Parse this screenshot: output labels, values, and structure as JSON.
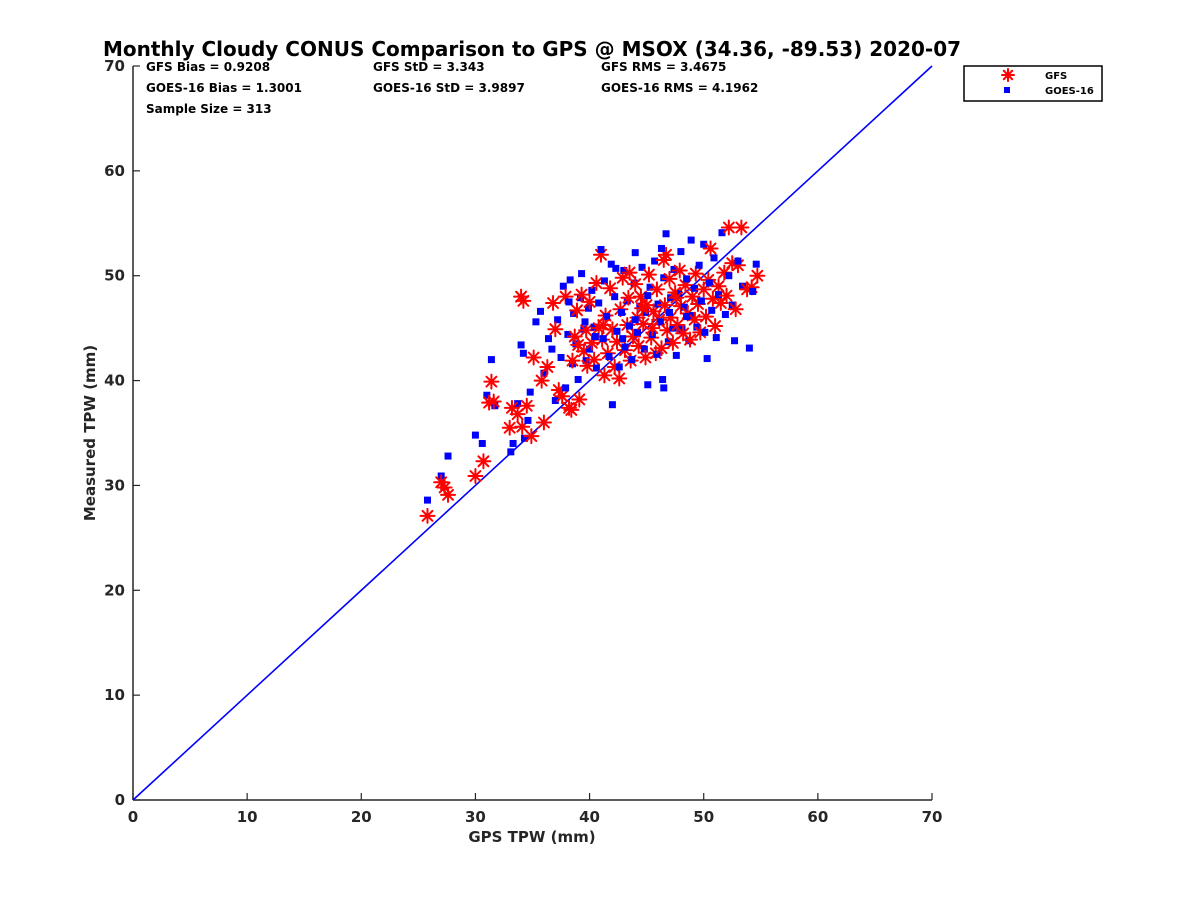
{
  "chart_data": {
    "type": "scatter",
    "title": "Monthly Cloudy CONUS Comparison to GPS @ MSOX (34.36, -89.53) 2020-07",
    "xlabel": "GPS TPW (mm)",
    "ylabel": "Measured TPW (mm)",
    "xlim": [
      0,
      70
    ],
    "ylim": [
      0,
      70
    ],
    "xticks": [
      "0",
      "10",
      "20",
      "30",
      "40",
      "50",
      "60",
      "70"
    ],
    "yticks": [
      "0",
      "10",
      "20",
      "30",
      "40",
      "50",
      "60",
      "70"
    ],
    "grid": false,
    "legend_position": "outside-top-right",
    "stats": [
      "GFS Bias = 0.9208",
      "GOES-16 Bias = 1.3001",
      "Sample Size = 313",
      "GFS StD = 3.343",
      "GOES-16 StD = 3.9897",
      "GFS RMS = 3.4675",
      "GOES-16 RMS = 4.1962"
    ],
    "reference_line": {
      "x": [
        0,
        70
      ],
      "y": [
        0,
        70
      ],
      "color": "#0000ff"
    },
    "series": [
      {
        "name": "GFS",
        "marker": "asterisk",
        "color": "#ff0000",
        "points": [
          [
            25.8,
            27.1
          ],
          [
            27.0,
            30.3
          ],
          [
            27.3,
            29.8
          ],
          [
            27.6,
            29.1
          ],
          [
            30.0,
            30.9
          ],
          [
            30.7,
            32.3
          ],
          [
            31.2,
            37.9
          ],
          [
            31.4,
            39.9
          ],
          [
            31.6,
            38.0
          ],
          [
            33.0,
            35.5
          ],
          [
            33.2,
            37.4
          ],
          [
            33.7,
            36.8
          ],
          [
            34.1,
            35.6
          ],
          [
            34.5,
            37.6
          ],
          [
            34.0,
            48.0
          ],
          [
            34.2,
            47.6
          ],
          [
            34.9,
            34.7
          ],
          [
            35.1,
            42.2
          ],
          [
            35.8,
            40.0
          ],
          [
            36.0,
            36.0
          ],
          [
            36.3,
            41.3
          ],
          [
            36.8,
            47.4
          ],
          [
            37.0,
            44.9
          ],
          [
            37.3,
            39.1
          ],
          [
            37.6,
            38.5
          ],
          [
            37.9,
            48.0
          ],
          [
            38.2,
            37.4
          ],
          [
            38.4,
            37.2
          ],
          [
            38.5,
            41.9
          ],
          [
            38.7,
            44.2
          ],
          [
            38.9,
            46.7
          ],
          [
            39.1,
            38.2
          ],
          [
            39.3,
            48.2
          ],
          [
            39.5,
            42.8
          ],
          [
            39.7,
            44.8
          ],
          [
            39.8,
            41.4
          ],
          [
            40.0,
            47.5
          ],
          [
            40.2,
            43.6
          ],
          [
            40.4,
            42.0
          ],
          [
            40.6,
            49.3
          ],
          [
            40.8,
            45.0
          ],
          [
            41.0,
            52.0
          ],
          [
            41.1,
            43.9
          ],
          [
            41.3,
            40.5
          ],
          [
            41.4,
            46.2
          ],
          [
            41.6,
            42.6
          ],
          [
            41.8,
            48.8
          ],
          [
            42.0,
            44.9
          ],
          [
            42.2,
            41.3
          ],
          [
            42.4,
            43.7
          ],
          [
            42.6,
            40.2
          ],
          [
            42.7,
            46.8
          ],
          [
            42.9,
            49.8
          ],
          [
            43.1,
            42.9
          ],
          [
            43.3,
            45.3
          ],
          [
            43.4,
            47.9
          ],
          [
            43.6,
            41.9
          ],
          [
            43.8,
            44.2
          ],
          [
            44.0,
            49.2
          ],
          [
            44.2,
            46.0
          ],
          [
            44.3,
            43.3
          ],
          [
            44.5,
            48.0
          ],
          [
            44.7,
            45.4
          ],
          [
            44.9,
            42.2
          ],
          [
            45.0,
            47.2
          ],
          [
            45.2,
            50.1
          ],
          [
            45.4,
            44.1
          ],
          [
            45.6,
            46.6
          ],
          [
            45.8,
            42.6
          ],
          [
            45.9,
            48.7
          ],
          [
            46.1,
            45.8
          ],
          [
            46.3,
            43.1
          ],
          [
            46.5,
            51.5
          ],
          [
            46.6,
            47.2
          ],
          [
            46.8,
            44.8
          ],
          [
            47.0,
            49.7
          ],
          [
            47.1,
            46.0
          ],
          [
            47.3,
            43.6
          ],
          [
            47.5,
            48.4
          ],
          [
            47.7,
            45.3
          ],
          [
            47.9,
            50.5
          ],
          [
            48.0,
            47.1
          ],
          [
            48.2,
            44.5
          ],
          [
            48.4,
            49.1
          ],
          [
            48.6,
            46.4
          ],
          [
            48.8,
            43.9
          ],
          [
            49.0,
            48.0
          ],
          [
            49.2,
            45.8
          ],
          [
            49.3,
            50.2
          ],
          [
            49.5,
            47.3
          ],
          [
            49.7,
            44.6
          ],
          [
            50.0,
            48.7
          ],
          [
            50.2,
            46.1
          ],
          [
            50.4,
            49.6
          ],
          [
            50.6,
            52.6
          ],
          [
            50.8,
            47.8
          ],
          [
            51.0,
            45.2
          ],
          [
            51.3,
            49.0
          ],
          [
            51.5,
            47.4
          ],
          [
            51.8,
            50.3
          ],
          [
            52.0,
            48.1
          ],
          [
            52.2,
            54.6
          ],
          [
            52.5,
            51.2
          ],
          [
            52.8,
            46.8
          ],
          [
            53.0,
            51.0
          ],
          [
            53.3,
            54.6
          ],
          [
            53.8,
            48.7
          ],
          [
            54.2,
            48.9
          ],
          [
            54.7,
            50.0
          ],
          [
            43.5,
            50.3
          ],
          [
            46.7,
            52.0
          ],
          [
            45.5,
            45.0
          ],
          [
            44.6,
            46.9
          ],
          [
            47.6,
            47.9
          ],
          [
            41.2,
            45.3
          ],
          [
            39.0,
            43.4
          ]
        ]
      },
      {
        "name": "GOES-16",
        "marker": "square",
        "color": "#0000ff",
        "points": [
          [
            25.8,
            28.6
          ],
          [
            27.0,
            30.9
          ],
          [
            27.6,
            32.8
          ],
          [
            30.0,
            34.8
          ],
          [
            30.6,
            34.0
          ],
          [
            31.0,
            38.6
          ],
          [
            31.4,
            42.0
          ],
          [
            31.7,
            37.6
          ],
          [
            33.1,
            33.2
          ],
          [
            33.3,
            34.0
          ],
          [
            33.7,
            37.8
          ],
          [
            34.0,
            43.4
          ],
          [
            34.2,
            42.6
          ],
          [
            34.3,
            34.5
          ],
          [
            34.6,
            36.2
          ],
          [
            34.8,
            38.9
          ],
          [
            35.3,
            45.6
          ],
          [
            35.7,
            46.6
          ],
          [
            36.0,
            40.7
          ],
          [
            36.4,
            44.0
          ],
          [
            36.7,
            43.0
          ],
          [
            37.0,
            38.1
          ],
          [
            37.2,
            45.8
          ],
          [
            37.5,
            42.2
          ],
          [
            37.7,
            49.0
          ],
          [
            37.9,
            39.3
          ],
          [
            38.1,
            44.4
          ],
          [
            38.3,
            49.6
          ],
          [
            38.5,
            41.6
          ],
          [
            38.6,
            46.4
          ],
          [
            38.8,
            43.5
          ],
          [
            39.0,
            40.1
          ],
          [
            39.2,
            47.9
          ],
          [
            39.3,
            50.2
          ],
          [
            39.5,
            44.9
          ],
          [
            39.7,
            41.9
          ],
          [
            39.9,
            46.9
          ],
          [
            40.0,
            43.0
          ],
          [
            40.2,
            48.6
          ],
          [
            40.4,
            45.1
          ],
          [
            40.6,
            41.2
          ],
          [
            40.8,
            47.4
          ],
          [
            41.0,
            52.5
          ],
          [
            41.2,
            44.0
          ],
          [
            41.3,
            49.5
          ],
          [
            41.5,
            46.1
          ],
          [
            41.7,
            42.3
          ],
          [
            41.9,
            51.1
          ],
          [
            42.0,
            37.7
          ],
          [
            42.2,
            48.0
          ],
          [
            42.4,
            44.7
          ],
          [
            42.6,
            41.3
          ],
          [
            42.8,
            46.5
          ],
          [
            43.0,
            50.5
          ],
          [
            43.1,
            43.2
          ],
          [
            43.3,
            47.6
          ],
          [
            43.5,
            45.2
          ],
          [
            43.7,
            42.0
          ],
          [
            43.9,
            49.3
          ],
          [
            44.0,
            52.2
          ],
          [
            44.2,
            44.6
          ],
          [
            44.4,
            47.1
          ],
          [
            44.6,
            50.8
          ],
          [
            44.8,
            43.0
          ],
          [
            44.9,
            46.5
          ],
          [
            45.1,
            39.6
          ],
          [
            45.3,
            48.9
          ],
          [
            45.5,
            44.4
          ],
          [
            45.7,
            51.4
          ],
          [
            45.9,
            42.5
          ],
          [
            46.0,
            47.3
          ],
          [
            46.2,
            45.6
          ],
          [
            46.4,
            40.1
          ],
          [
            46.5,
            49.8
          ],
          [
            46.7,
            54.0
          ],
          [
            46.9,
            43.7
          ],
          [
            47.1,
            47.9
          ],
          [
            47.3,
            45.0
          ],
          [
            47.4,
            50.6
          ],
          [
            47.6,
            42.4
          ],
          [
            47.8,
            48.3
          ],
          [
            48.0,
            52.3
          ],
          [
            48.1,
            44.9
          ],
          [
            48.3,
            47.0
          ],
          [
            48.5,
            49.7
          ],
          [
            48.7,
            43.8
          ],
          [
            48.9,
            53.4
          ],
          [
            49.0,
            46.2
          ],
          [
            49.2,
            48.8
          ],
          [
            49.4,
            45.1
          ],
          [
            49.6,
            51.0
          ],
          [
            49.8,
            47.6
          ],
          [
            50.0,
            53.0
          ],
          [
            50.1,
            44.6
          ],
          [
            50.3,
            42.1
          ],
          [
            50.5,
            49.3
          ],
          [
            50.7,
            46.7
          ],
          [
            50.9,
            51.7
          ],
          [
            51.1,
            44.1
          ],
          [
            51.3,
            48.2
          ],
          [
            51.6,
            54.1
          ],
          [
            51.9,
            46.3
          ],
          [
            52.2,
            50.0
          ],
          [
            52.5,
            47.2
          ],
          [
            52.7,
            43.8
          ],
          [
            53.0,
            51.4
          ],
          [
            53.4,
            49.0
          ],
          [
            54.0,
            43.1
          ],
          [
            54.3,
            48.5
          ],
          [
            54.6,
            51.1
          ],
          [
            42.3,
            50.7
          ],
          [
            46.3,
            52.6
          ],
          [
            44.0,
            45.8
          ],
          [
            47.0,
            46.5
          ],
          [
            45.1,
            48.1
          ],
          [
            40.5,
            44.2
          ],
          [
            39.6,
            45.6
          ],
          [
            46.5,
            39.3
          ],
          [
            38.2,
            47.5
          ],
          [
            42.9,
            44.0
          ],
          [
            48.5,
            46.1
          ]
        ]
      }
    ]
  }
}
